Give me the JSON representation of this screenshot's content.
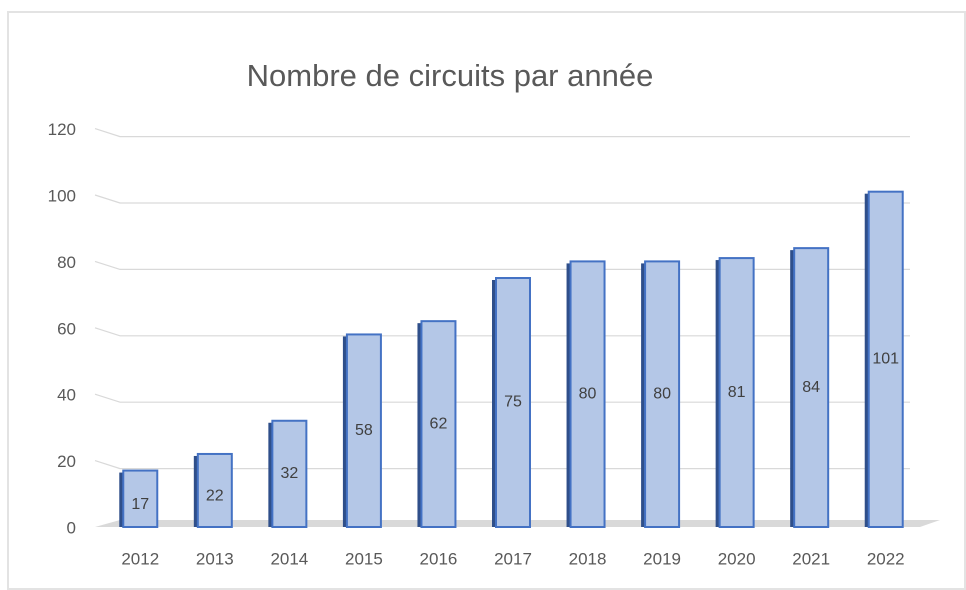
{
  "chart_data": {
    "type": "bar",
    "title": "Nombre de circuits par année",
    "categories": [
      "2012",
      "2013",
      "2014",
      "2015",
      "2016",
      "2017",
      "2018",
      "2019",
      "2020",
      "2021",
      "2022"
    ],
    "values": [
      17,
      22,
      32,
      58,
      62,
      75,
      80,
      80,
      81,
      84,
      101
    ],
    "color": "#b4c7e7",
    "ylim": [
      0,
      120
    ],
    "yticks": [
      0,
      20,
      40,
      60,
      80,
      100,
      120
    ],
    "grid": true
  }
}
